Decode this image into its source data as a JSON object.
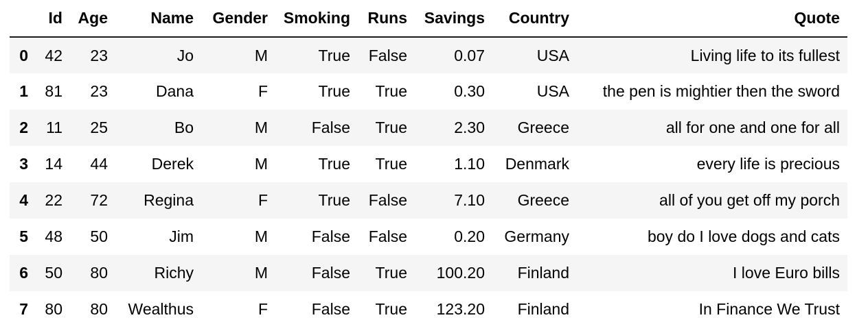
{
  "table": {
    "columns": [
      "",
      "Id",
      "Age",
      "Name",
      "Gender",
      "Smoking",
      "Runs",
      "Savings",
      "Country",
      "Quote"
    ],
    "rows": [
      [
        "0",
        "42",
        "23",
        "Jo",
        "M",
        "True",
        "False",
        "0.07",
        "USA",
        "Living life to its fullest"
      ],
      [
        "1",
        "81",
        "23",
        "Dana",
        "F",
        "True",
        "True",
        "0.30",
        "USA",
        "the pen is mightier then the sword"
      ],
      [
        "2",
        "11",
        "25",
        "Bo",
        "M",
        "False",
        "True",
        "2.30",
        "Greece",
        "all for one and one for all"
      ],
      [
        "3",
        "14",
        "44",
        "Derek",
        "M",
        "True",
        "True",
        "1.10",
        "Denmark",
        "every life is precious"
      ],
      [
        "4",
        "22",
        "72",
        "Regina",
        "F",
        "True",
        "False",
        "7.10",
        "Greece",
        "all of you get off my porch"
      ],
      [
        "5",
        "48",
        "50",
        "Jim",
        "M",
        "False",
        "False",
        "0.20",
        "Germany",
        "boy do I love dogs and cats"
      ],
      [
        "6",
        "50",
        "80",
        "Richy",
        "M",
        "False",
        "True",
        "100.20",
        "Finland",
        "I love Euro bills"
      ],
      [
        "7",
        "80",
        "80",
        "Wealthus",
        "F",
        "False",
        "True",
        "123.20",
        "Finland",
        "In Finance We Trust"
      ]
    ]
  }
}
